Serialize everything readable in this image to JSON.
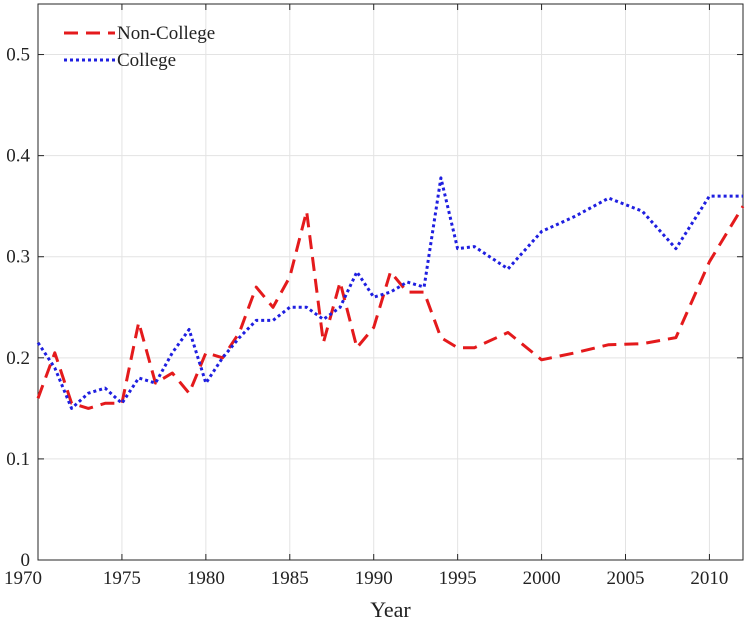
{
  "chart_data": {
    "type": "line",
    "title": "",
    "xlabel": "Year",
    "ylabel": "",
    "xlim": [
      1970,
      2012
    ],
    "ylim": [
      0,
      0.55
    ],
    "xticks": [
      1970,
      1975,
      1980,
      1985,
      1990,
      1995,
      2000,
      2005,
      2010
    ],
    "xtick_labels": [
      "1970",
      "1975",
      "1980",
      "1985",
      "1990",
      "1995",
      "2000",
      "2005",
      "2010"
    ],
    "yticks": [
      0,
      0.1,
      0.2,
      0.3,
      0.4,
      0.5
    ],
    "ytick_labels": [
      "0",
      "0.1",
      "0.2",
      "0.3",
      "0.4",
      "0.5"
    ],
    "grid": true,
    "legend_position": "top-left",
    "series": [
      {
        "name": "Non-College",
        "color": "#e41a1c",
        "style": "dashed",
        "x": [
          1970,
          1971,
          1972,
          1973,
          1974,
          1975,
          1976,
          1977,
          1978,
          1979,
          1980,
          1981,
          1982,
          1983,
          1984,
          1985,
          1986,
          1987,
          1988,
          1989,
          1990,
          1991,
          1992,
          1993,
          1994,
          1995,
          1996,
          1998,
          2000,
          2002,
          2004,
          2006,
          2008,
          2010,
          2012
        ],
        "y": [
          0.16,
          0.205,
          0.155,
          0.15,
          0.155,
          0.155,
          0.235,
          0.175,
          0.185,
          0.165,
          0.205,
          0.2,
          0.225,
          0.27,
          0.25,
          0.28,
          0.345,
          0.215,
          0.275,
          0.21,
          0.23,
          0.285,
          0.265,
          0.265,
          0.22,
          0.21,
          0.21,
          0.225,
          0.198,
          0.205,
          0.213,
          0.214,
          0.22,
          0.295,
          0.35
        ]
      },
      {
        "name": "College",
        "color": "#1f1fe0",
        "style": "dotted",
        "x": [
          1970,
          1971,
          1972,
          1973,
          1974,
          1975,
          1976,
          1977,
          1978,
          1979,
          1980,
          1981,
          1982,
          1983,
          1984,
          1985,
          1986,
          1987,
          1988,
          1989,
          1990,
          1991,
          1992,
          1993,
          1994,
          1995,
          1996,
          1998,
          2000,
          2002,
          2004,
          2006,
          2008,
          2010,
          2012
        ],
        "y": [
          0.215,
          0.19,
          0.15,
          0.165,
          0.17,
          0.155,
          0.18,
          0.175,
          0.205,
          0.228,
          0.175,
          0.2,
          0.22,
          0.237,
          0.237,
          0.25,
          0.25,
          0.238,
          0.25,
          0.285,
          0.26,
          0.265,
          0.275,
          0.27,
          0.378,
          0.308,
          0.31,
          0.288,
          0.325,
          0.34,
          0.358,
          0.345,
          0.308,
          0.36,
          0.36
        ]
      }
    ]
  }
}
